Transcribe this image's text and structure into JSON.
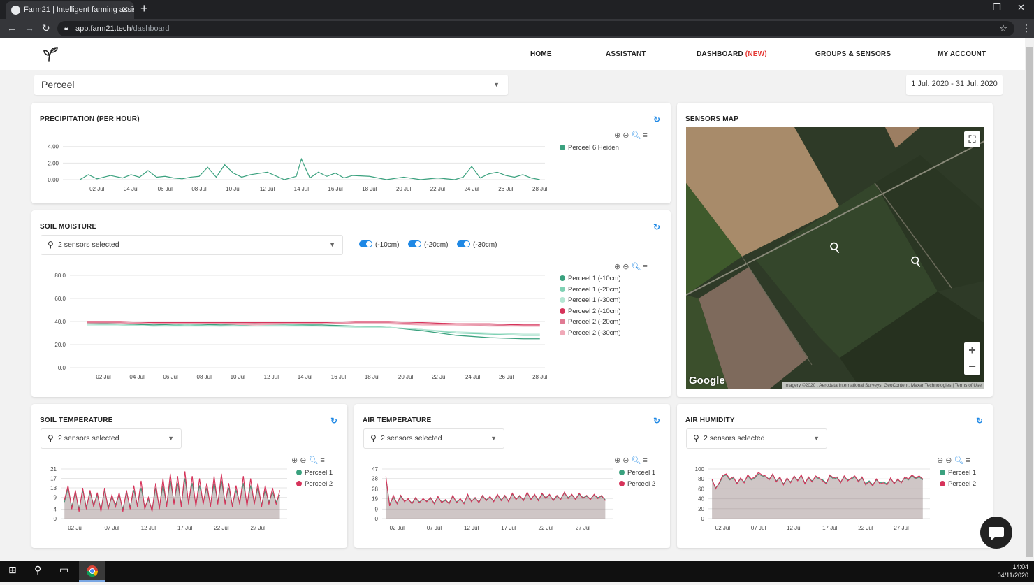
{
  "browser": {
    "tab_title": "Farm21 | Intelligent farming assis",
    "url_host": "app.farm21.tech",
    "url_path": "/dashboard"
  },
  "nav": {
    "home": "HOME",
    "assistant": "ASSISTANT",
    "dashboard": "DASHBOARD",
    "dashboard_badge": "(NEW)",
    "groups": "GROUPS & SENSORS",
    "account": "MY ACCOUNT"
  },
  "filters": {
    "field_select": "Perceel",
    "date_range": "1 Jul. 2020 - 31 Jul. 2020"
  },
  "precipitation": {
    "title": "PRECIPITATION (PER HOUR)",
    "legend": [
      "Perceel 6 Heiden"
    ]
  },
  "soil_moisture": {
    "title": "SOIL MOISTURE",
    "sensor_select": "2 sensors selected",
    "toggles": [
      "(-10cm)",
      "(-20cm)",
      "(-30cm)"
    ],
    "legend": [
      "Perceel 1 (-10cm)",
      "Perceel 1 (-20cm)",
      "Perceel 1 (-30cm)",
      "Perceel 2 (-10cm)",
      "Perceel 2 (-20cm)",
      "Perceel 2 (-30cm)"
    ]
  },
  "soil_temperature": {
    "title": "SOIL TEMPERATURE",
    "sensor_select": "2 sensors selected",
    "legend": [
      "Perceel 1",
      "Perceel 2"
    ]
  },
  "air_temperature": {
    "title": "AIR TEMPERATURE",
    "sensor_select": "2 sensors selected",
    "legend": [
      "Perceel 1",
      "Perceel 2"
    ]
  },
  "air_humidity": {
    "title": "AIR HUMIDITY",
    "sensor_select": "2 sensors selected",
    "legend": [
      "Perceel 1",
      "Perceel 2"
    ]
  },
  "sensors_map": {
    "title": "SENSORS MAP",
    "logo_text": "Google",
    "attribution": "Imagery ©2020 , Aerodata International Surveys, GeoContent, Maxar Technologies",
    "terms": "Terms of Use"
  },
  "taskbar": {
    "time": "14:04",
    "date": "04/11/2020"
  },
  "colors": {
    "green": "#3aa17e",
    "green2": "#7fd1b4",
    "green3": "#b4e6d3",
    "red": "#d6335a",
    "red2": "#e07a93",
    "red3": "#f0a9b8",
    "accent": "#1e88e5",
    "badge": "#e53935"
  },
  "chart_data": [
    {
      "type": "line",
      "title": "PRECIPITATION (PER HOUR)",
      "x_ticks": [
        "02 Jul",
        "04 Jul",
        "06 Jul",
        "08 Jul",
        "10 Jul",
        "12 Jul",
        "14 Jul",
        "16 Jul",
        "18 Jul",
        "20 Jul",
        "22 Jul",
        "24 Jul",
        "26 Jul",
        "28 Jul"
      ],
      "y_ticks": [
        "0.00",
        "2.00",
        "4.00"
      ],
      "ylim": [
        0,
        4.4
      ],
      "series": [
        {
          "name": "Perceel 6 Heiden",
          "x": [
            1,
            1.5,
            2,
            2.8,
            3.5,
            4,
            4.5,
            5,
            5.5,
            6,
            6.5,
            7,
            7.5,
            8,
            8.5,
            9,
            9.5,
            10,
            10.5,
            11,
            12,
            13,
            13.7,
            14,
            14.5,
            15,
            15.5,
            16,
            16.5,
            17,
            18,
            19,
            20,
            21,
            22,
            23,
            23.5,
            24,
            24.5,
            25,
            25.5,
            26,
            26.5,
            27,
            27.5,
            28
          ],
          "values": [
            0,
            0.6,
            0.1,
            0.5,
            0.2,
            0.6,
            0.3,
            1.1,
            0.3,
            0.4,
            0.2,
            0.1,
            0.3,
            0.4,
            1.5,
            0.3,
            1.8,
            0.8,
            0.3,
            0.6,
            0.9,
            0,
            0.4,
            2.5,
            0.2,
            0.9,
            0.4,
            0.8,
            0.2,
            0.5,
            0.4,
            0,
            0.3,
            0,
            0.2,
            0,
            0.3,
            1.6,
            0.2,
            0.7,
            0.9,
            0.5,
            0.3,
            0.6,
            0.2,
            0
          ]
        }
      ]
    },
    {
      "type": "line",
      "title": "SOIL MOISTURE",
      "x_ticks": [
        "02 Jul",
        "04 Jul",
        "06 Jul",
        "08 Jul",
        "10 Jul",
        "12 Jul",
        "14 Jul",
        "16 Jul",
        "18 Jul",
        "20 Jul",
        "22 Jul",
        "24 Jul",
        "26 Jul",
        "28 Jul"
      ],
      "y_ticks": [
        "0.0",
        "20.0",
        "40.0",
        "60.0",
        "80.0"
      ],
      "ylim": [
        0,
        80
      ],
      "x": [
        1,
        3,
        5,
        7,
        9,
        11,
        13,
        15,
        17,
        19,
        21,
        23,
        25,
        27,
        28
      ],
      "series": [
        {
          "name": "Perceel 1 (-10cm)",
          "values": [
            39,
            38,
            37,
            38,
            37,
            38,
            37,
            37,
            36,
            35,
            32,
            28,
            26,
            25,
            25
          ]
        },
        {
          "name": "Perceel 1 (-20cm)",
          "values": [
            38,
            37,
            36,
            37,
            36,
            37,
            37,
            36,
            36,
            35,
            33,
            30,
            29,
            28,
            28
          ]
        },
        {
          "name": "Perceel 1 (-30cm)",
          "values": [
            37,
            37,
            36,
            36,
            36,
            36,
            36,
            36,
            35,
            35,
            33,
            31,
            30,
            29,
            29
          ]
        },
        {
          "name": "Perceel 2 (-10cm)",
          "values": [
            40,
            40,
            39,
            39,
            39,
            39,
            39,
            39,
            40,
            40,
            39,
            38,
            38,
            37,
            37
          ]
        },
        {
          "name": "Perceel 2 (-20cm)",
          "values": [
            39,
            39,
            38,
            38,
            38,
            38,
            38,
            38,
            39,
            39,
            38,
            37,
            37,
            36,
            36
          ]
        },
        {
          "name": "Perceel 2 (-30cm)",
          "values": [
            38,
            38,
            38,
            38,
            38,
            37,
            38,
            38,
            38,
            38,
            37,
            37,
            36,
            36,
            36
          ]
        }
      ]
    },
    {
      "type": "area",
      "title": "SOIL TEMPERATURE",
      "x_ticks": [
        "02 Jul",
        "07 Jul",
        "12 Jul",
        "17 Jul",
        "22 Jul",
        "27 Jul"
      ],
      "y_ticks": [
        "0",
        "4",
        "9",
        "13",
        "17",
        "21"
      ],
      "ylim": [
        0,
        21
      ],
      "x": [
        0.5,
        1,
        1.5,
        2,
        2.5,
        3,
        3.5,
        4,
        4.5,
        5,
        5.5,
        6,
        6.5,
        7,
        7.5,
        8,
        8.5,
        9,
        9.5,
        10,
        10.5,
        11,
        11.5,
        12,
        12.5,
        13,
        13.5,
        14,
        14.5,
        15,
        15.5,
        16,
        16.5,
        17,
        17.5,
        18,
        18.5,
        19,
        19.5,
        20,
        20.5,
        21,
        21.5,
        22,
        22.5,
        23,
        23.5,
        24,
        24.5,
        25,
        25.5,
        26,
        26.5,
        27,
        27.5,
        28,
        28.5,
        29,
        29.5,
        30
      ],
      "series": [
        {
          "name": "Perceel 1",
          "values": [
            7,
            13,
            5,
            11,
            4,
            12,
            5,
            11,
            6,
            10,
            4,
            12,
            5,
            9,
            6,
            10,
            4,
            11,
            5,
            12,
            6,
            13,
            5,
            8,
            4,
            13,
            5,
            14,
            6,
            16,
            7,
            15,
            6,
            17,
            7,
            15,
            6,
            14,
            7,
            13,
            6,
            15,
            7,
            16,
            7,
            13,
            6,
            12,
            7,
            15,
            6,
            14,
            7,
            13,
            6,
            12,
            7,
            11,
            7,
            10
          ]
        },
        {
          "name": "Perceel 2",
          "values": [
            8,
            14,
            4,
            12,
            3,
            13,
            4,
            12,
            5,
            11,
            3,
            13,
            4,
            10,
            5,
            11,
            3,
            12,
            4,
            14,
            5,
            16,
            4,
            9,
            3,
            15,
            4,
            17,
            5,
            19,
            6,
            18,
            5,
            20,
            6,
            18,
            5,
            17,
            6,
            15,
            5,
            18,
            6,
            19,
            6,
            15,
            5,
            14,
            6,
            18,
            5,
            17,
            6,
            15,
            5,
            14,
            6,
            13,
            6,
            12
          ]
        }
      ]
    },
    {
      "type": "area",
      "title": "AIR TEMPERATURE",
      "x_ticks": [
        "02 Jul",
        "07 Jul",
        "12 Jul",
        "17 Jul",
        "22 Jul",
        "27 Jul"
      ],
      "y_ticks": [
        "0",
        "9",
        "19",
        "28",
        "38",
        "47"
      ],
      "ylim": [
        0,
        47
      ],
      "x": [
        0.5,
        1,
        1.5,
        2,
        2.5,
        3,
        3.5,
        4,
        4.5,
        5,
        5.5,
        6,
        6.5,
        7,
        7.5,
        8,
        8.5,
        9,
        9.5,
        10,
        10.5,
        11,
        11.5,
        12,
        12.5,
        13,
        13.5,
        14,
        14.5,
        15,
        15.5,
        16,
        16.5,
        17,
        17.5,
        18,
        18.5,
        19,
        19.5,
        20,
        20.5,
        21,
        21.5,
        22,
        22.5,
        23,
        23.5,
        24,
        24.5,
        25,
        25.5,
        26,
        26.5,
        27,
        27.5,
        28,
        28.5,
        29,
        29.5,
        30
      ],
      "series": [
        {
          "name": "Perceel 1",
          "values": [
            38,
            14,
            20,
            15,
            21,
            17,
            18,
            15,
            19,
            16,
            18,
            17,
            19,
            15,
            20,
            16,
            17,
            15,
            21,
            16,
            18,
            15,
            22,
            17,
            19,
            16,
            21,
            18,
            20,
            17,
            22,
            18,
            21,
            17,
            23,
            19,
            21,
            18,
            24,
            19,
            22,
            18,
            23,
            20,
            22,
            18,
            21,
            19,
            24,
            20,
            22,
            19,
            23,
            20,
            21,
            19,
            22,
            20,
            21,
            18
          ]
        },
        {
          "name": "Perceel 2",
          "values": [
            40,
            12,
            22,
            14,
            22,
            16,
            19,
            14,
            20,
            15,
            19,
            16,
            20,
            14,
            21,
            15,
            18,
            14,
            22,
            15,
            19,
            14,
            23,
            16,
            20,
            15,
            22,
            17,
            21,
            16,
            23,
            17,
            22,
            16,
            24,
            18,
            22,
            17,
            25,
            18,
            23,
            17,
            24,
            19,
            23,
            17,
            22,
            18,
            25,
            19,
            23,
            18,
            24,
            19,
            22,
            18,
            23,
            19,
            22,
            17
          ]
        }
      ]
    },
    {
      "type": "area",
      "title": "AIR HUMIDITY",
      "x_ticks": [
        "02 Jul",
        "07 Jul",
        "12 Jul",
        "17 Jul",
        "22 Jul",
        "27 Jul"
      ],
      "y_ticks": [
        "0",
        "20",
        "40",
        "60",
        "80",
        "100"
      ],
      "ylim": [
        0,
        100
      ],
      "x": [
        0.5,
        1,
        1.5,
        2,
        2.5,
        3,
        3.5,
        4,
        4.5,
        5,
        5.5,
        6,
        6.5,
        7,
        7.5,
        8,
        8.5,
        9,
        9.5,
        10,
        10.5,
        11,
        11.5,
        12,
        12.5,
        13,
        13.5,
        14,
        14.5,
        15,
        15.5,
        16,
        16.5,
        17,
        17.5,
        18,
        18.5,
        19,
        19.5,
        20,
        20.5,
        21,
        21.5,
        22,
        22.5,
        23,
        23.5,
        24,
        24.5,
        25,
        25.5,
        26,
        26.5,
        27,
        27.5,
        28,
        28.5,
        29,
        29.5,
        30
      ],
      "series": [
        {
          "name": "Perceel 1",
          "values": [
            78,
            62,
            70,
            85,
            88,
            78,
            82,
            72,
            80,
            74,
            86,
            78,
            82,
            90,
            86,
            84,
            80,
            88,
            76,
            82,
            70,
            80,
            74,
            84,
            78,
            86,
            72,
            82,
            76,
            84,
            80,
            78,
            72,
            86,
            80,
            82,
            74,
            84,
            78,
            80,
            84,
            76,
            82,
            70,
            76,
            68,
            78,
            72,
            74,
            70,
            80,
            72,
            78,
            74,
            82,
            78,
            86,
            80,
            84,
            78
          ]
        },
        {
          "name": "Perceel 2",
          "values": [
            80,
            60,
            72,
            87,
            90,
            80,
            84,
            70,
            82,
            72,
            88,
            80,
            84,
            93,
            88,
            86,
            78,
            90,
            74,
            84,
            68,
            82,
            72,
            86,
            76,
            88,
            70,
            84,
            74,
            86,
            82,
            76,
            70,
            88,
            82,
            84,
            72,
            86,
            76,
            82,
            86,
            74,
            84,
            68,
            74,
            66,
            80,
            70,
            72,
            68,
            82,
            70,
            80,
            72,
            84,
            80,
            88,
            82,
            86,
            80
          ]
        }
      ]
    }
  ]
}
